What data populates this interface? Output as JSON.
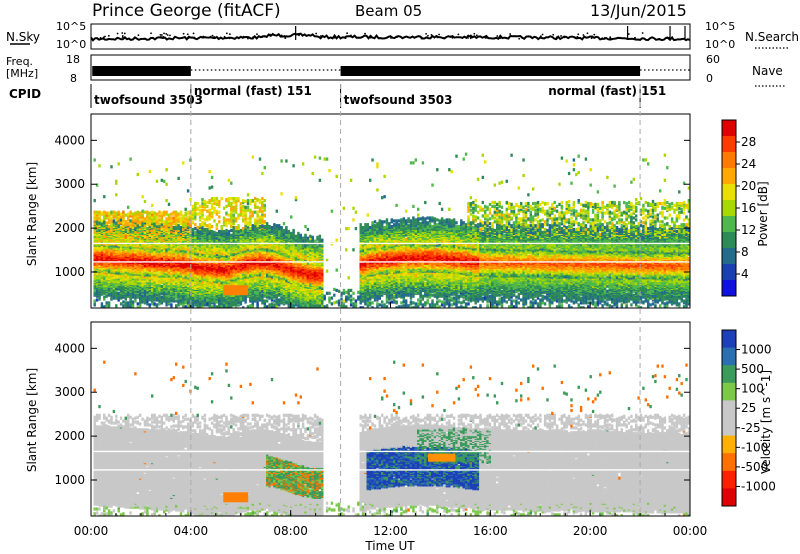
{
  "header": {
    "station": "Prince George (fitACF)",
    "beam": "Beam 05",
    "date": "13/Jun/2015"
  },
  "noise_panel": {
    "left_label": "N.Sky",
    "right_label": "N.Search",
    "left_ticks": [
      "10^5",
      "10^0"
    ],
    "right_ticks": [
      "10^5",
      "10^0"
    ]
  },
  "freq_panel": {
    "left_label_1": "Freq.",
    "left_label_2": "[MHz]",
    "left_ticks": [
      "18",
      "8"
    ],
    "right_label": "Nave",
    "right_ticks": [
      "60",
      "0"
    ]
  },
  "cpid": {
    "label": "CPID",
    "segments": [
      {
        "start_hour": 0,
        "end_hour": 4,
        "name": "twofsound 3503"
      },
      {
        "start_hour": 4,
        "end_hour": 10,
        "name": "normal (fast) 151"
      },
      {
        "start_hour": 10,
        "end_hour": 22,
        "name": "twofsound 3503"
      },
      {
        "start_hour": 18.2,
        "end_hour": 22,
        "name": "normal (fast) 151"
      }
    ]
  },
  "chart_data": [
    {
      "type": "heatmap",
      "panel": "power",
      "ylabel": "Slant Range [km]",
      "yticks": [
        1000,
        2000,
        3000,
        4000
      ],
      "ylim": [
        180,
        4600
      ],
      "xlim": [
        0,
        24
      ],
      "colorbar": {
        "label": "Power [dB]",
        "ticks": [
          "28",
          "24",
          "20",
          "16",
          "12",
          "8",
          "4"
        ],
        "colors": [
          "#e00000",
          "#ff3c00",
          "#ff7a00",
          "#ffa800",
          "#e8e000",
          "#a8d800",
          "#4fb84a",
          "#2e8b57",
          "#226b8a",
          "#1a40b0",
          "#1010e0"
        ]
      },
      "features": [
        {
          "t0": 0.3,
          "t1": 4.0,
          "r0": 1050,
          "r1": 1750,
          "level": "high"
        },
        {
          "t0": 4.0,
          "t1": 7.2,
          "r0": 900,
          "r1": 1500,
          "level": "high"
        },
        {
          "t0": 7.0,
          "t1": 9.5,
          "r0": 800,
          "r1": 1400,
          "level": "high"
        },
        {
          "t0": 11.0,
          "t1": 15.5,
          "r0": 950,
          "r1": 1650,
          "level": "high"
        },
        {
          "t0": 15.5,
          "t1": 24.0,
          "r0": 950,
          "r1": 1550,
          "level": "medium"
        }
      ]
    },
    {
      "type": "heatmap",
      "panel": "velocity",
      "ylabel": "Slant Range [km]",
      "yticks": [
        1000,
        2000,
        3000,
        4000
      ],
      "ylim": [
        180,
        4600
      ],
      "xlim": [
        0,
        24
      ],
      "xticks": [
        "00:00",
        "04:00",
        "08:00",
        "12:00",
        "16:00",
        "20:00",
        "00:00"
      ],
      "xlabel": "Time UT",
      "colorbar": {
        "label": "Velocity [m s^-1]",
        "ticks": [
          "1000",
          "500",
          "100",
          "25",
          "-25",
          "-100",
          "-500",
          "-1000"
        ],
        "colors": [
          "#1d3fb8",
          "#2a6fb0",
          "#3a9b5a",
          "#7cc84a",
          "#c8c8c8",
          "#c8c8c8",
          "#ffb000",
          "#ff7000",
          "#ff2000",
          "#e00000"
        ]
      }
    }
  ]
}
